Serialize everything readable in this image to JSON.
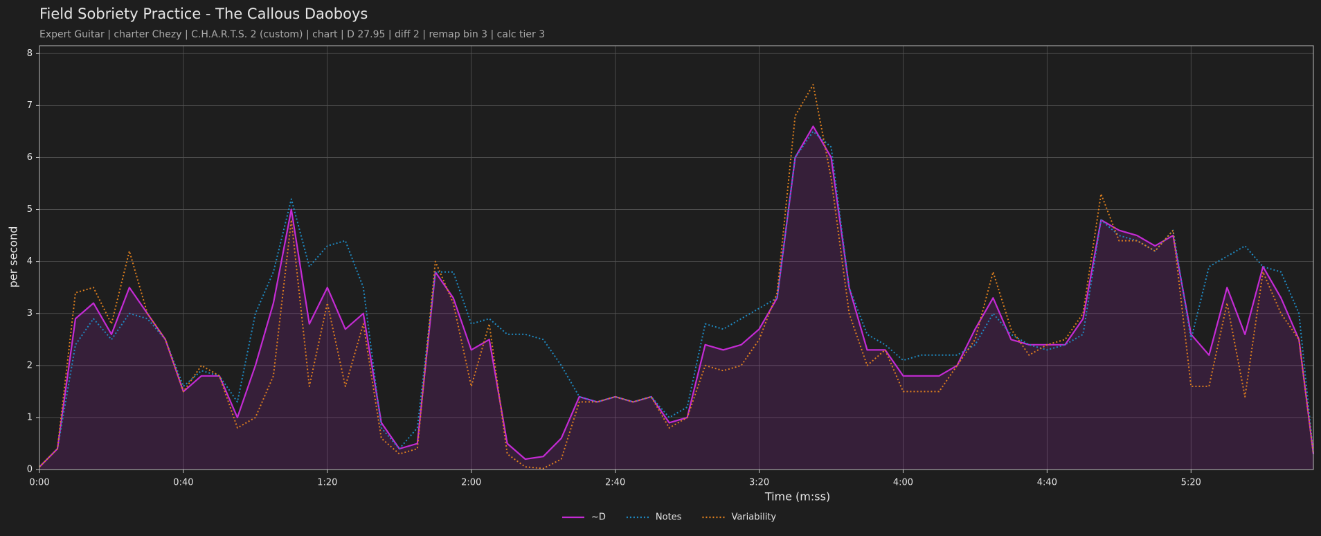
{
  "chart_data": {
    "type": "line",
    "title": "Field Sobriety Practice - The Callous Daoboys",
    "subtitle": "Expert Guitar  |  charter Chezy  |  C.H.A.R.T.S. 2 (custom)  |  chart  |  D 27.95  |  diff 2  |  remap bin 3  |  calc tier 3",
    "xlabel": "Time (m:ss)",
    "ylabel": "per second",
    "x": [
      0,
      5,
      10,
      15,
      20,
      25,
      30,
      35,
      40,
      45,
      50,
      55,
      60,
      65,
      70,
      75,
      80,
      85,
      90,
      95,
      100,
      105,
      110,
      115,
      120,
      125,
      130,
      135,
      140,
      145,
      150,
      155,
      160,
      165,
      170,
      175,
      180,
      185,
      190,
      195,
      200,
      205,
      210,
      215,
      220,
      225,
      230,
      235,
      240,
      245,
      250,
      255,
      260,
      265,
      270,
      275,
      280,
      285,
      290,
      295,
      300,
      305,
      310,
      315,
      320,
      325,
      330,
      335,
      340,
      345,
      350,
      354
    ],
    "series": [
      {
        "name": "~D",
        "color": "#c42bd4",
        "style": "solid",
        "fill": true,
        "values": [
          0.05,
          0.4,
          2.9,
          3.2,
          2.6,
          3.5,
          3.0,
          2.5,
          1.5,
          1.8,
          1.8,
          1.0,
          2.0,
          3.2,
          5.0,
          2.8,
          3.5,
          2.7,
          3.0,
          0.9,
          0.4,
          0.5,
          3.8,
          3.3,
          2.3,
          2.5,
          0.5,
          0.2,
          0.25,
          0.6,
          1.4,
          1.3,
          1.4,
          1.3,
          1.4,
          0.9,
          1.0,
          2.4,
          2.3,
          2.4,
          2.7,
          3.3,
          6.0,
          6.6,
          6.0,
          3.5,
          2.3,
          2.3,
          1.8,
          1.8,
          1.8,
          2.0,
          2.7,
          3.3,
          2.5,
          2.4,
          2.4,
          2.4,
          2.9,
          4.8,
          4.6,
          4.5,
          4.3,
          4.5,
          2.6,
          2.2,
          3.5,
          2.6,
          3.9,
          3.3,
          2.5,
          0.3
        ]
      },
      {
        "name": "Notes",
        "color": "#1f8bc4",
        "style": "dotted",
        "values": [
          0.05,
          0.4,
          2.4,
          2.9,
          2.5,
          3.0,
          2.9,
          2.5,
          1.6,
          1.9,
          1.8,
          1.3,
          3.0,
          3.8,
          5.2,
          3.9,
          4.3,
          4.4,
          3.5,
          0.8,
          0.4,
          0.8,
          3.8,
          3.8,
          2.8,
          2.9,
          2.6,
          2.6,
          2.5,
          2.0,
          1.4,
          1.3,
          1.4,
          1.3,
          1.4,
          1.0,
          1.2,
          2.8,
          2.7,
          2.9,
          3.1,
          3.3,
          6.0,
          6.5,
          6.2,
          3.5,
          2.6,
          2.4,
          2.1,
          2.2,
          2.2,
          2.2,
          2.4,
          3.0,
          2.6,
          2.4,
          2.3,
          2.4,
          2.6,
          4.8,
          4.5,
          4.4,
          4.2,
          4.6,
          2.5,
          3.9,
          4.1,
          4.3,
          3.9,
          3.8,
          3.0,
          0.3
        ]
      },
      {
        "name": "Variability",
        "color": "#e0801e",
        "style": "dotted",
        "values": [
          0.05,
          0.4,
          3.4,
          3.5,
          2.8,
          4.2,
          3.0,
          2.5,
          1.5,
          2.0,
          1.8,
          0.8,
          1.0,
          1.8,
          4.8,
          1.6,
          3.2,
          1.6,
          2.8,
          0.6,
          0.3,
          0.4,
          4.0,
          3.2,
          1.6,
          2.8,
          0.3,
          0.05,
          0.02,
          0.2,
          1.3,
          1.3,
          1.4,
          1.3,
          1.4,
          0.8,
          1.0,
          2.0,
          1.9,
          2.0,
          2.5,
          3.4,
          6.8,
          7.4,
          5.6,
          3.0,
          2.0,
          2.3,
          1.5,
          1.5,
          1.5,
          2.0,
          2.5,
          3.8,
          2.7,
          2.2,
          2.4,
          2.5,
          3.0,
          5.3,
          4.4,
          4.4,
          4.2,
          4.6,
          1.6,
          1.6,
          3.2,
          1.4,
          3.8,
          3.0,
          2.5,
          0.3
        ]
      }
    ],
    "xlim": [
      0,
      354
    ],
    "ylim": [
      0,
      8.15
    ],
    "xticks": [
      {
        "value": 0,
        "label": "0:00"
      },
      {
        "value": 40,
        "label": "0:40"
      },
      {
        "value": 80,
        "label": "1:20"
      },
      {
        "value": 120,
        "label": "2:00"
      },
      {
        "value": 160,
        "label": "2:40"
      },
      {
        "value": 200,
        "label": "3:20"
      },
      {
        "value": 240,
        "label": "4:00"
      },
      {
        "value": 280,
        "label": "4:40"
      },
      {
        "value": 320,
        "label": "5:20"
      }
    ],
    "yticks": [
      0,
      1,
      2,
      3,
      4,
      5,
      6,
      7,
      8
    ],
    "grid": true,
    "legend": "bottom"
  }
}
